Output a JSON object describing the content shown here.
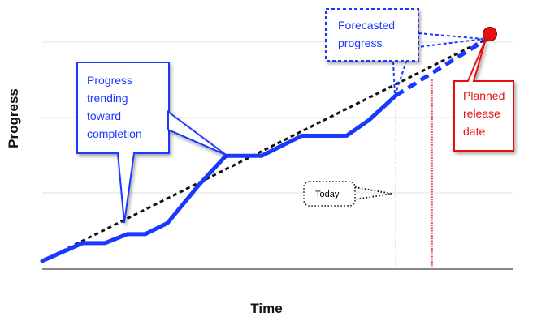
{
  "chart_data": {
    "type": "line",
    "title": "",
    "xlabel": "Time",
    "ylabel": "Progress",
    "xlim": [
      0,
      100
    ],
    "ylim": [
      0,
      100
    ],
    "grid": true,
    "series": [
      {
        "values": [
          [
            0,
            0
          ],
          [
            9,
            8
          ],
          [
            14,
            8
          ],
          [
            19,
            12
          ],
          [
            23,
            12
          ],
          [
            28,
            17
          ],
          [
            35,
            34
          ],
          [
            41,
            47
          ],
          [
            49,
            47
          ],
          [
            58,
            56
          ],
          [
            68,
            56
          ],
          [
            73,
            63
          ],
          [
            79,
            74
          ]
        ],
        "color": "#1a39ff"
      }
    ],
    "forecast": {
      "values": [
        [
          79,
          74
        ],
        [
          100,
          100
        ]
      ],
      "color": "#1a39ff"
    },
    "ideal_trend": {
      "values": [
        [
          0,
          0
        ],
        [
          100,
          100
        ]
      ],
      "color": "#111111"
    },
    "today_x": 79,
    "release_x": 87,
    "release_point": {
      "x": 100,
      "y": 100,
      "color": "#e81010"
    },
    "annotations": {
      "trending": "Progress trending toward completion",
      "forecast": "Forecasted progress",
      "today": "Today",
      "release": "Planned release date"
    },
    "colors": {
      "series": "#1a39ff",
      "release": "#e81010",
      "grid": "#e3e3e3"
    }
  }
}
